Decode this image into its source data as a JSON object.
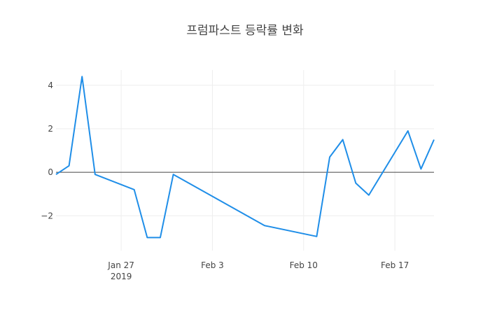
{
  "chart_data": {
    "type": "line",
    "title": "프럼파스트 등락률 변화",
    "xlabel": "",
    "ylabel": "",
    "ylim": [
      -3.6,
      4.7
    ],
    "xlim": [
      "2019-01-22",
      "2019-02-20"
    ],
    "x_ticks": [
      {
        "date": "2019-01-27",
        "label": "Jan 27",
        "sublabel": "2019"
      },
      {
        "date": "2019-02-03",
        "label": "Feb 3",
        "sublabel": ""
      },
      {
        "date": "2019-02-10",
        "label": "Feb 10",
        "sublabel": ""
      },
      {
        "date": "2019-02-17",
        "label": "Feb 17",
        "sublabel": ""
      }
    ],
    "y_ticks": [
      {
        "value": 4,
        "label": "4"
      },
      {
        "value": 2,
        "label": "2"
      },
      {
        "value": 0,
        "label": "0"
      },
      {
        "value": -2,
        "label": "−2"
      }
    ],
    "grid": true,
    "legend": "none",
    "line_color": "#1f8ee8",
    "series": [
      {
        "x": [
          "2019-01-22",
          "2019-01-23",
          "2019-01-24",
          "2019-01-25",
          "2019-01-28",
          "2019-01-29",
          "2019-01-30",
          "2019-01-31",
          "2019-02-07",
          "2019-02-11",
          "2019-02-12",
          "2019-02-13",
          "2019-02-14",
          "2019-02-15",
          "2019-02-18",
          "2019-02-19",
          "2019-02-20"
        ],
        "values": [
          -0.1,
          0.3,
          4.4,
          -0.1,
          -0.8,
          -3.0,
          -3.0,
          -0.1,
          -2.45,
          -2.95,
          0.7,
          1.5,
          -0.5,
          -1.05,
          1.9,
          0.15,
          1.5
        ]
      }
    ]
  }
}
